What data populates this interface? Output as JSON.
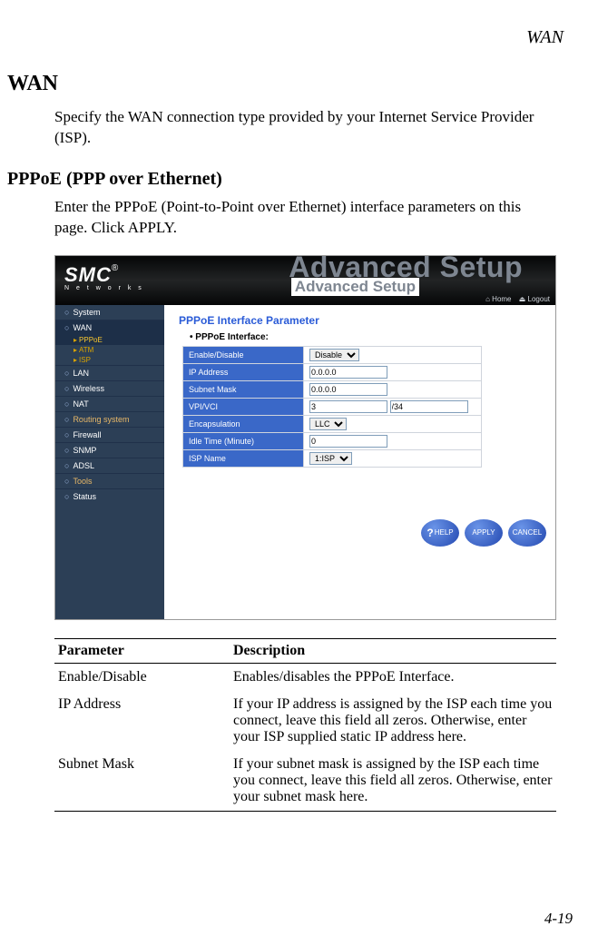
{
  "running_head": "WAN",
  "h1": "WAN",
  "intro": "Specify the WAN connection type provided by your Internet Service Provider (ISP).",
  "h2": "PPPoE (PPP over Ethernet)",
  "intro2": "Enter the PPPoE (Point-to-Point over Ethernet) interface parameters on this page. Click APPLY.",
  "pagenum": "4-19",
  "screenshot": {
    "logo": {
      "brand": "SMC",
      "reg": "®",
      "sub": "N e t w o r k s"
    },
    "adv_shadow": "Advanced Setup",
    "banner": "Advanced Setup",
    "homebar": {
      "home": "⌂ Home",
      "logout": "⏏ Logout"
    },
    "side": {
      "items": [
        {
          "label": "System",
          "type": "grp"
        },
        {
          "label": "WAN",
          "type": "grp sel"
        },
        {
          "label": "PPPoE",
          "type": "sub sel"
        },
        {
          "label": "ATM",
          "type": "sub"
        },
        {
          "label": "ISP",
          "type": "sub"
        },
        {
          "label": "LAN",
          "type": "grp"
        },
        {
          "label": "Wireless",
          "type": "grp"
        },
        {
          "label": "NAT",
          "type": "grp"
        },
        {
          "label": "Routing system",
          "type": "grp",
          "orange": true
        },
        {
          "label": "Firewall",
          "type": "grp"
        },
        {
          "label": "SNMP",
          "type": "grp"
        },
        {
          "label": "ADSL",
          "type": "grp"
        },
        {
          "label": "Tools",
          "type": "grp",
          "orange": true
        },
        {
          "label": "Status",
          "type": "grp"
        }
      ]
    },
    "main": {
      "title": "PPPoE Interface Parameter",
      "subtitle": "PPPoE Interface:",
      "rows": [
        {
          "label": "Enable/Disable",
          "kind": "select",
          "value": "Disable"
        },
        {
          "label": "IP Address",
          "kind": "text",
          "value": "0.0.0.0"
        },
        {
          "label": "Subnet Mask",
          "kind": "text",
          "value": "0.0.0.0"
        },
        {
          "label": "VPI/VCI",
          "kind": "vpivci",
          "v1": "3",
          "v2": "/34"
        },
        {
          "label": "Encapsulation",
          "kind": "select",
          "value": "LLC"
        },
        {
          "label": "Idle Time (Minute)",
          "kind": "text",
          "value": "0"
        },
        {
          "label": "ISP Name",
          "kind": "select",
          "value": "1:ISP"
        }
      ],
      "buttons": {
        "help": "HELP",
        "apply": "APPLY",
        "cancel": "CANCEL"
      }
    }
  },
  "ptable": {
    "headers": {
      "param": "Parameter",
      "desc": "Description"
    },
    "rows": [
      {
        "param": "Enable/Disable",
        "desc": "Enables/disables the PPPoE Interface."
      },
      {
        "param": "IP Address",
        "desc": "If your IP address is assigned by the ISP each time you connect, leave this field all zeros. Otherwise, enter your ISP supplied static IP address here."
      },
      {
        "param": "Subnet Mask",
        "desc": "If your subnet mask is assigned by the ISP each time you connect, leave this field all zeros. Otherwise, enter your subnet mask here."
      }
    ]
  }
}
